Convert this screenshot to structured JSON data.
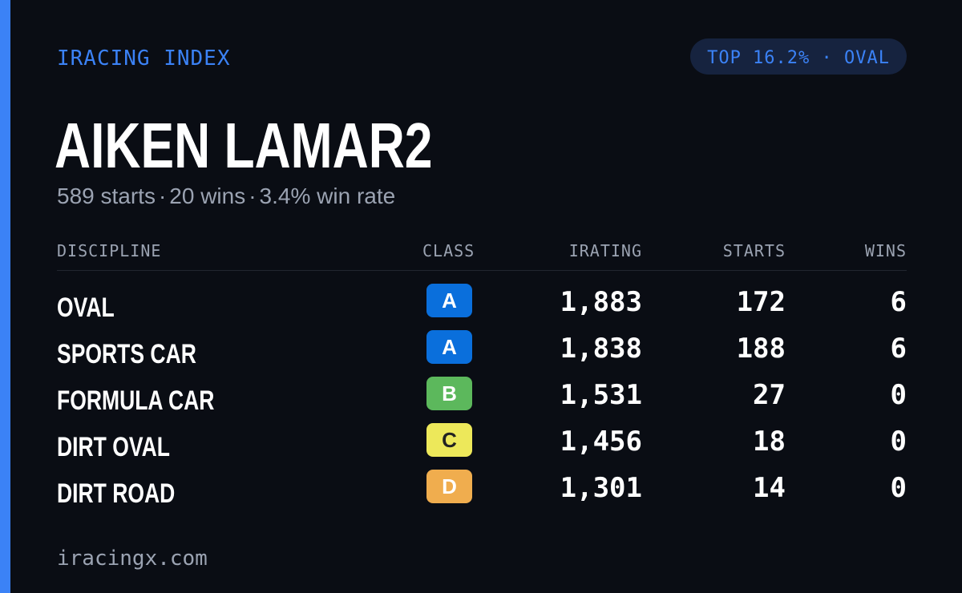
{
  "colors": {
    "background": "#0a0d14",
    "accent": "#3b82f6",
    "badge_bg": "#16233f",
    "text_primary": "#ffffff",
    "text_muted": "#9ba3b2"
  },
  "header": {
    "brand": "IRACING INDEX",
    "badge": "TOP 16.2% · OVAL"
  },
  "driver": {
    "name": "AIKEN LAMAR2",
    "starts": "589 starts",
    "wins": "20 wins",
    "win_rate": "3.4% win rate",
    "separator": "·"
  },
  "table": {
    "columns": {
      "discipline": "DISCIPLINE",
      "class": "CLASS",
      "irating": "IRATING",
      "starts": "STARTS",
      "wins": "WINS"
    },
    "rows": [
      {
        "discipline": "OVAL",
        "class": "A",
        "class_bg": "#0a6fdc",
        "class_fg": "#ffffff",
        "irating": "1,883",
        "starts": "172",
        "wins": "6"
      },
      {
        "discipline": "SPORTS CAR",
        "class": "A",
        "class_bg": "#0a6fdc",
        "class_fg": "#ffffff",
        "irating": "1,838",
        "starts": "188",
        "wins": "6"
      },
      {
        "discipline": "FORMULA CAR",
        "class": "B",
        "class_bg": "#5cb85c",
        "class_fg": "#ffffff",
        "irating": "1,531",
        "starts": "27",
        "wins": "0"
      },
      {
        "discipline": "DIRT OVAL",
        "class": "C",
        "class_bg": "#ede85a",
        "class_fg": "#222222",
        "irating": "1,456",
        "starts": "18",
        "wins": "0"
      },
      {
        "discipline": "DIRT ROAD",
        "class": "D",
        "class_bg": "#f0ad4e",
        "class_fg": "#ffffff",
        "irating": "1,301",
        "starts": "14",
        "wins": "0"
      }
    ]
  },
  "footer": {
    "site": "iracingx.com"
  }
}
